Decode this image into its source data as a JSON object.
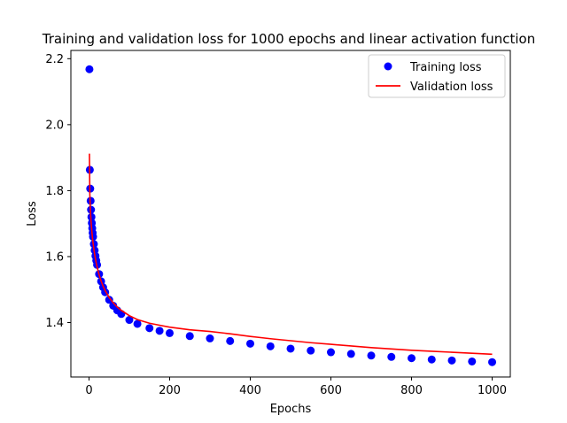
{
  "chart_data": {
    "type": "scatter",
    "title": "Training and validation loss for 1000 epochs and linear activation function",
    "xlabel": "Epochs",
    "ylabel": "Loss",
    "xlim": [
      -45,
      1045
    ],
    "ylim": [
      1.235,
      2.225
    ],
    "x_ticks": [
      {
        "value": 0,
        "label": "0"
      },
      {
        "value": 200,
        "label": "200"
      },
      {
        "value": 400,
        "label": "400"
      },
      {
        "value": 600,
        "label": "600"
      },
      {
        "value": 800,
        "label": "800"
      },
      {
        "value": 1000,
        "label": "1000"
      }
    ],
    "y_ticks": [
      {
        "value": 1.4,
        "label": "1.4"
      },
      {
        "value": 1.6,
        "label": "1.6"
      },
      {
        "value": 1.8,
        "label": "1.8"
      },
      {
        "value": 2.0,
        "label": "2.0"
      },
      {
        "value": 2.2,
        "label": "2.2"
      }
    ],
    "grid": false,
    "legend": {
      "placement": "top-right"
    },
    "series": [
      {
        "name": "Training loss",
        "kind": "scatter",
        "color": "#0000ff",
        "marker": "circle",
        "x": [
          1,
          2,
          3,
          4,
          5,
          6,
          7,
          8,
          9,
          10,
          12,
          14,
          16,
          18,
          20,
          25,
          30,
          35,
          40,
          50,
          60,
          70,
          80,
          100,
          120,
          150,
          175,
          200,
          250,
          300,
          350,
          400,
          450,
          500,
          550,
          600,
          650,
          700,
          750,
          800,
          850,
          900,
          950,
          1000
        ],
        "y": [
          2.168,
          1.863,
          1.806,
          1.769,
          1.742,
          1.72,
          1.702,
          1.686,
          1.672,
          1.66,
          1.638,
          1.619,
          1.602,
          1.588,
          1.575,
          1.547,
          1.525,
          1.507,
          1.492,
          1.469,
          1.451,
          1.437,
          1.426,
          1.408,
          1.396,
          1.383,
          1.375,
          1.368,
          1.359,
          1.352,
          1.344,
          1.336,
          1.328,
          1.321,
          1.315,
          1.31,
          1.305,
          1.3,
          1.296,
          1.292,
          1.288,
          1.285,
          1.282,
          1.28
        ]
      },
      {
        "name": "Validation loss",
        "kind": "line",
        "color": "#ff0000",
        "x": [
          1,
          2,
          3,
          4,
          5,
          6,
          7,
          8,
          9,
          10,
          12,
          14,
          16,
          18,
          20,
          25,
          30,
          35,
          40,
          50,
          60,
          70,
          80,
          100,
          120,
          150,
          175,
          200,
          250,
          300,
          350,
          400,
          450,
          500,
          550,
          600,
          650,
          700,
          750,
          800,
          850,
          900,
          950,
          1000
        ],
        "y": [
          1.912,
          1.79,
          1.753,
          1.728,
          1.708,
          1.692,
          1.677,
          1.664,
          1.652,
          1.642,
          1.623,
          1.607,
          1.593,
          1.58,
          1.569,
          1.545,
          1.526,
          1.51,
          1.497,
          1.476,
          1.46,
          1.447,
          1.437,
          1.421,
          1.409,
          1.398,
          1.392,
          1.386,
          1.378,
          1.373,
          1.366,
          1.358,
          1.351,
          1.345,
          1.339,
          1.334,
          1.329,
          1.324,
          1.32,
          1.316,
          1.313,
          1.31,
          1.307,
          1.304
        ]
      }
    ]
  }
}
